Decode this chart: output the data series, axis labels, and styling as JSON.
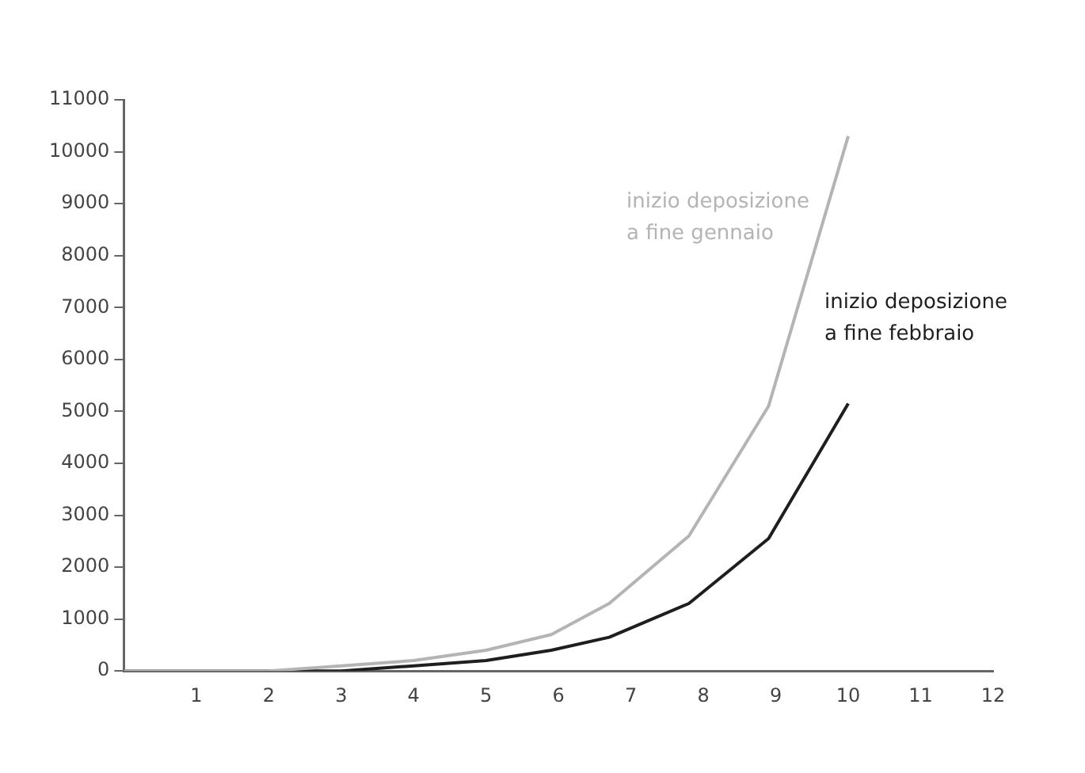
{
  "chart_data": {
    "type": "line",
    "xlim": [
      0,
      12
    ],
    "xticks": [
      1,
      2,
      3,
      4,
      5,
      6,
      7,
      8,
      9,
      10,
      11,
      12
    ],
    "ylim": [
      0,
      11000
    ],
    "yticks": [
      0,
      1000,
      2000,
      3000,
      4000,
      5000,
      6000,
      7000,
      8000,
      9000,
      10000,
      11000
    ],
    "grid": false,
    "legend": false,
    "marker": "none",
    "line_style": "solid",
    "series": [
      {
        "name": "inizio deposizione\na fine gennaio",
        "color": "#b4b4b4",
        "x": [
          0,
          1,
          2,
          3,
          4,
          5,
          5.9,
          6.7,
          7.8,
          8.9,
          10
        ],
        "values": [
          0,
          0,
          0,
          100,
          200,
          400,
          700,
          1300,
          2600,
          5100,
          10300
        ]
      },
      {
        "name": "inizio deposizione\na fine febbraio",
        "color": "#1e1e1e",
        "x": [
          0,
          1,
          2,
          3,
          4,
          5,
          5.9,
          6.7,
          7.8,
          8.9,
          10
        ],
        "values": [
          0,
          0,
          0,
          0,
          100,
          200,
          400,
          650,
          1300,
          2550,
          5150
        ]
      }
    ]
  }
}
